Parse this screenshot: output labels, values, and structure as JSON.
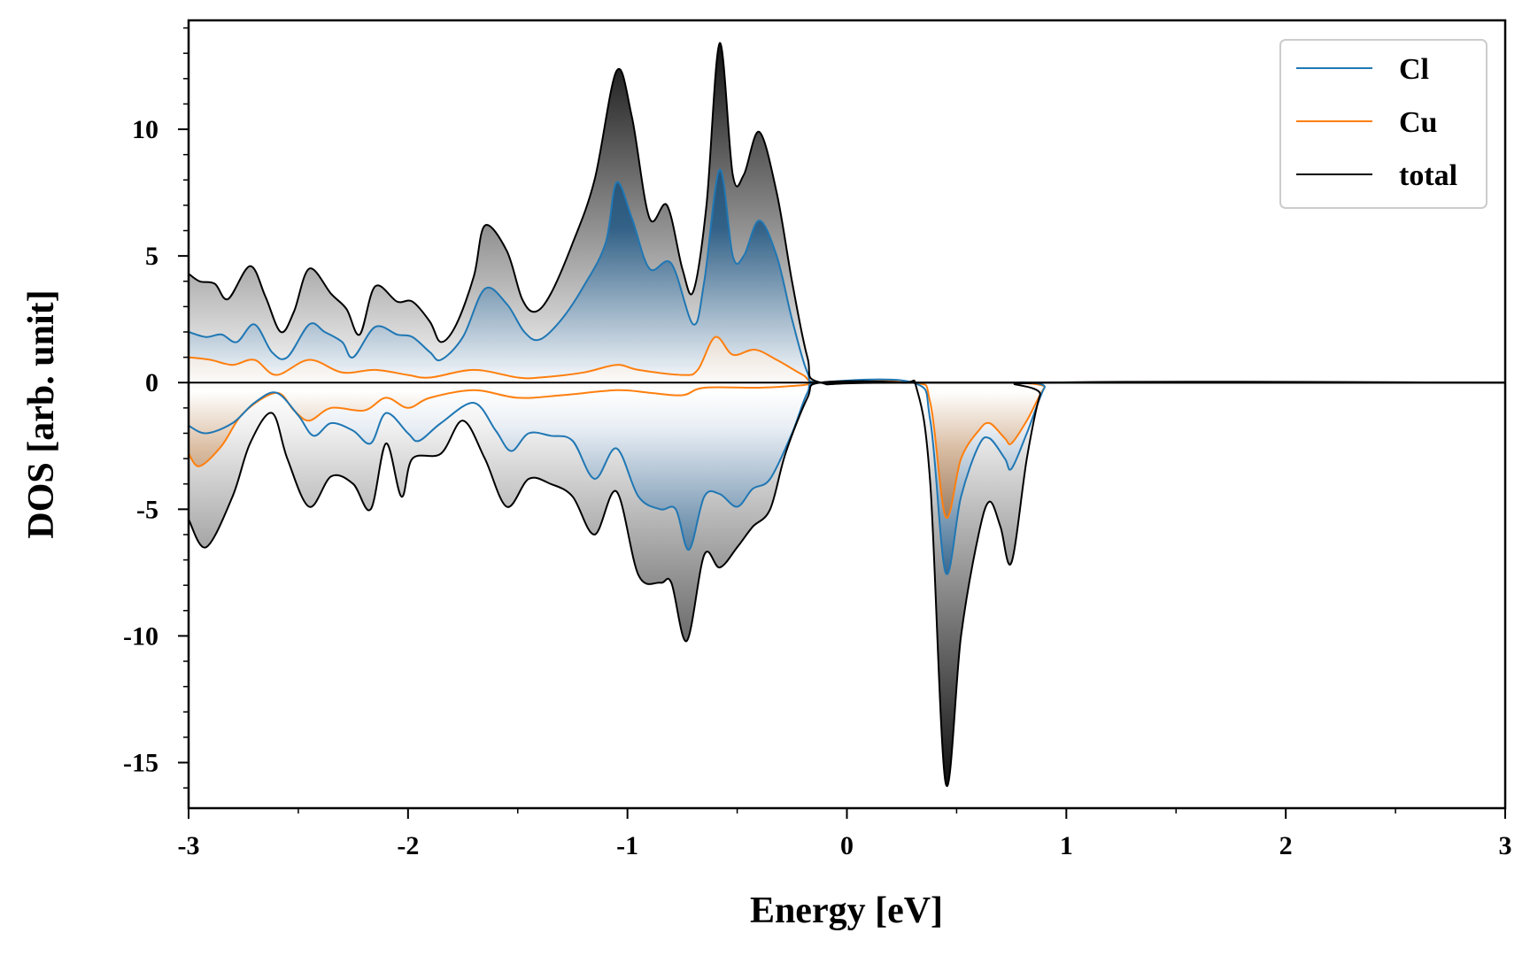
{
  "chart_data": {
    "type": "area",
    "title": "",
    "xlabel": "Energy [eV]",
    "ylabel": "DOS [arb. unit]",
    "xlim": [
      -3,
      3
    ],
    "ylim": [
      -16.8,
      14.3
    ],
    "xticks": [
      -3,
      -2,
      -1,
      0,
      1,
      2,
      3
    ],
    "xtick_labels": [
      "-3",
      "-2",
      "-1",
      "0",
      "1",
      "2",
      "3"
    ],
    "yticks": [
      -15,
      -10,
      -5,
      0,
      5,
      10
    ],
    "ytick_labels": [
      "-15",
      "-10",
      "-5",
      "0",
      "5",
      "10"
    ],
    "legend_position": "top-right",
    "grid": false,
    "colors": {
      "Cl": "#1f77b4",
      "Cu": "#ff7f0e",
      "total": "#000000"
    },
    "series": [
      {
        "name": "Cl",
        "spin_up": [
          [
            -3.0,
            2.0
          ],
          [
            -2.92,
            1.8
          ],
          [
            -2.85,
            1.9
          ],
          [
            -2.78,
            1.6
          ],
          [
            -2.7,
            2.3
          ],
          [
            -2.62,
            1.2
          ],
          [
            -2.55,
            1.0
          ],
          [
            -2.45,
            2.3
          ],
          [
            -2.38,
            2.0
          ],
          [
            -2.3,
            1.6
          ],
          [
            -2.25,
            1.0
          ],
          [
            -2.15,
            2.2
          ],
          [
            -2.05,
            1.9
          ],
          [
            -1.98,
            1.8
          ],
          [
            -1.9,
            1.2
          ],
          [
            -1.85,
            0.9
          ],
          [
            -1.75,
            1.8
          ],
          [
            -1.65,
            3.7
          ],
          [
            -1.55,
            3.1
          ],
          [
            -1.47,
            2.0
          ],
          [
            -1.4,
            1.7
          ],
          [
            -1.3,
            2.5
          ],
          [
            -1.2,
            3.8
          ],
          [
            -1.1,
            5.5
          ],
          [
            -1.05,
            7.9
          ],
          [
            -0.98,
            6.5
          ],
          [
            -0.9,
            4.5
          ],
          [
            -0.8,
            4.7
          ],
          [
            -0.7,
            2.3
          ],
          [
            -0.65,
            4.0
          ],
          [
            -0.58,
            8.4
          ],
          [
            -0.52,
            5.0
          ],
          [
            -0.47,
            5.0
          ],
          [
            -0.4,
            6.4
          ],
          [
            -0.32,
            5.0
          ],
          [
            -0.25,
            2.5
          ],
          [
            -0.18,
            0.4
          ],
          [
            -0.12,
            0.0
          ],
          [
            0.3,
            0.0
          ],
          [
            3.0,
            0.0
          ]
        ],
        "spin_down": [
          [
            -3.0,
            -1.7
          ],
          [
            -2.92,
            -2.0
          ],
          [
            -2.8,
            -1.6
          ],
          [
            -2.7,
            -0.8
          ],
          [
            -2.6,
            -0.4
          ],
          [
            -2.5,
            -1.3
          ],
          [
            -2.43,
            -2.1
          ],
          [
            -2.35,
            -1.6
          ],
          [
            -2.25,
            -1.9
          ],
          [
            -2.17,
            -2.4
          ],
          [
            -2.1,
            -1.2
          ],
          [
            -2.0,
            -2.0
          ],
          [
            -1.95,
            -2.3
          ],
          [
            -1.85,
            -1.6
          ],
          [
            -1.7,
            -0.8
          ],
          [
            -1.6,
            -1.9
          ],
          [
            -1.53,
            -2.7
          ],
          [
            -1.45,
            -2.0
          ],
          [
            -1.35,
            -2.1
          ],
          [
            -1.25,
            -2.3
          ],
          [
            -1.15,
            -3.8
          ],
          [
            -1.05,
            -2.6
          ],
          [
            -0.95,
            -4.5
          ],
          [
            -0.85,
            -5.0
          ],
          [
            -0.78,
            -5.0
          ],
          [
            -0.72,
            -6.6
          ],
          [
            -0.65,
            -4.5
          ],
          [
            -0.58,
            -4.4
          ],
          [
            -0.5,
            -4.9
          ],
          [
            -0.43,
            -4.2
          ],
          [
            -0.35,
            -3.8
          ],
          [
            -0.25,
            -2.0
          ],
          [
            -0.18,
            -0.4
          ],
          [
            -0.12,
            0.0
          ],
          [
            0.3,
            0.0
          ],
          [
            0.38,
            -1.5
          ],
          [
            0.45,
            -7.5
          ],
          [
            0.52,
            -4.5
          ],
          [
            0.6,
            -2.5
          ],
          [
            0.65,
            -2.2
          ],
          [
            0.72,
            -3.0
          ],
          [
            0.75,
            -3.4
          ],
          [
            0.82,
            -2.0
          ],
          [
            0.9,
            -0.2
          ],
          [
            0.95,
            0.0
          ],
          [
            3.0,
            0.0
          ]
        ]
      },
      {
        "name": "Cu",
        "spin_up": [
          [
            -3.0,
            1.0
          ],
          [
            -2.9,
            0.9
          ],
          [
            -2.8,
            0.7
          ],
          [
            -2.7,
            0.9
          ],
          [
            -2.6,
            0.3
          ],
          [
            -2.45,
            0.9
          ],
          [
            -2.3,
            0.4
          ],
          [
            -2.15,
            0.5
          ],
          [
            -2.0,
            0.3
          ],
          [
            -1.9,
            0.2
          ],
          [
            -1.7,
            0.5
          ],
          [
            -1.5,
            0.2
          ],
          [
            -1.4,
            0.2
          ],
          [
            -1.2,
            0.4
          ],
          [
            -1.05,
            0.7
          ],
          [
            -0.95,
            0.5
          ],
          [
            -0.75,
            0.3
          ],
          [
            -0.68,
            0.5
          ],
          [
            -0.6,
            1.8
          ],
          [
            -0.52,
            1.1
          ],
          [
            -0.42,
            1.3
          ],
          [
            -0.32,
            0.9
          ],
          [
            -0.2,
            0.3
          ],
          [
            -0.12,
            0.0
          ],
          [
            0.3,
            0.0
          ],
          [
            3.0,
            0.0
          ]
        ],
        "spin_down": [
          [
            -3.0,
            -2.8
          ],
          [
            -2.95,
            -3.3
          ],
          [
            -2.85,
            -2.5
          ],
          [
            -2.75,
            -1.2
          ],
          [
            -2.6,
            -0.4
          ],
          [
            -2.52,
            -1.1
          ],
          [
            -2.45,
            -1.5
          ],
          [
            -2.35,
            -1.0
          ],
          [
            -2.2,
            -1.1
          ],
          [
            -2.1,
            -0.6
          ],
          [
            -2.0,
            -1.0
          ],
          [
            -1.9,
            -0.6
          ],
          [
            -1.7,
            -0.3
          ],
          [
            -1.5,
            -0.6
          ],
          [
            -1.3,
            -0.5
          ],
          [
            -1.05,
            -0.3
          ],
          [
            -0.9,
            -0.4
          ],
          [
            -0.75,
            -0.5
          ],
          [
            -0.65,
            -0.2
          ],
          [
            -0.4,
            -0.2
          ],
          [
            -0.2,
            -0.1
          ],
          [
            -0.12,
            0.0
          ],
          [
            0.3,
            0.0
          ],
          [
            0.38,
            -0.8
          ],
          [
            0.45,
            -5.3
          ],
          [
            0.52,
            -3.0
          ],
          [
            0.6,
            -1.9
          ],
          [
            0.65,
            -1.6
          ],
          [
            0.72,
            -2.2
          ],
          [
            0.75,
            -2.4
          ],
          [
            0.82,
            -1.5
          ],
          [
            0.9,
            -0.2
          ],
          [
            0.95,
            0.0
          ],
          [
            3.0,
            0.0
          ]
        ]
      },
      {
        "name": "total",
        "spin_up": [
          [
            -3.0,
            4.3
          ],
          [
            -2.95,
            4.0
          ],
          [
            -2.88,
            3.9
          ],
          [
            -2.82,
            3.3
          ],
          [
            -2.72,
            4.6
          ],
          [
            -2.65,
            3.4
          ],
          [
            -2.58,
            2.0
          ],
          [
            -2.52,
            2.8
          ],
          [
            -2.45,
            4.5
          ],
          [
            -2.35,
            3.5
          ],
          [
            -2.28,
            2.9
          ],
          [
            -2.22,
            1.9
          ],
          [
            -2.15,
            3.8
          ],
          [
            -2.05,
            3.2
          ],
          [
            -1.98,
            3.2
          ],
          [
            -1.9,
            2.4
          ],
          [
            -1.85,
            1.6
          ],
          [
            -1.78,
            2.3
          ],
          [
            -1.7,
            4.2
          ],
          [
            -1.65,
            6.2
          ],
          [
            -1.55,
            5.2
          ],
          [
            -1.48,
            3.3
          ],
          [
            -1.42,
            2.8
          ],
          [
            -1.35,
            3.5
          ],
          [
            -1.25,
            5.5
          ],
          [
            -1.15,
            8.0
          ],
          [
            -1.05,
            12.3
          ],
          [
            -0.98,
            10.5
          ],
          [
            -0.9,
            6.5
          ],
          [
            -0.82,
            7.0
          ],
          [
            -0.75,
            4.5
          ],
          [
            -0.7,
            3.6
          ],
          [
            -0.64,
            7.0
          ],
          [
            -0.58,
            13.4
          ],
          [
            -0.52,
            8.2
          ],
          [
            -0.47,
            8.2
          ],
          [
            -0.4,
            9.9
          ],
          [
            -0.32,
            7.5
          ],
          [
            -0.25,
            4.0
          ],
          [
            -0.18,
            1.0
          ],
          [
            -0.12,
            0.0
          ],
          [
            0.3,
            0.0
          ],
          [
            3.0,
            0.0
          ]
        ],
        "spin_down": [
          [
            -3.0,
            -5.4
          ],
          [
            -2.92,
            -6.5
          ],
          [
            -2.8,
            -4.5
          ],
          [
            -2.72,
            -2.4
          ],
          [
            -2.62,
            -1.2
          ],
          [
            -2.55,
            -3.0
          ],
          [
            -2.45,
            -4.9
          ],
          [
            -2.35,
            -3.7
          ],
          [
            -2.25,
            -4.0
          ],
          [
            -2.17,
            -5.0
          ],
          [
            -2.1,
            -2.4
          ],
          [
            -2.03,
            -4.5
          ],
          [
            -1.98,
            -3.0
          ],
          [
            -1.85,
            -2.8
          ],
          [
            -1.75,
            -1.5
          ],
          [
            -1.65,
            -3.0
          ],
          [
            -1.55,
            -4.9
          ],
          [
            -1.45,
            -3.8
          ],
          [
            -1.35,
            -4.0
          ],
          [
            -1.25,
            -4.5
          ],
          [
            -1.15,
            -6.0
          ],
          [
            -1.05,
            -4.3
          ],
          [
            -0.95,
            -7.6
          ],
          [
            -0.85,
            -7.9
          ],
          [
            -0.8,
            -7.9
          ],
          [
            -0.73,
            -10.2
          ],
          [
            -0.65,
            -6.8
          ],
          [
            -0.58,
            -7.3
          ],
          [
            -0.5,
            -6.5
          ],
          [
            -0.43,
            -5.7
          ],
          [
            -0.35,
            -5.0
          ],
          [
            -0.28,
            -2.8
          ],
          [
            -0.18,
            -0.6
          ],
          [
            -0.12,
            0.0
          ],
          [
            0.25,
            0.0
          ],
          [
            0.32,
            -0.3
          ],
          [
            0.38,
            -4.0
          ],
          [
            0.45,
            -15.8
          ],
          [
            0.52,
            -10.0
          ],
          [
            0.6,
            -6.0
          ],
          [
            0.65,
            -4.7
          ],
          [
            0.7,
            -5.7
          ],
          [
            0.75,
            -7.1
          ],
          [
            0.82,
            -3.0
          ],
          [
            0.88,
            -0.5
          ],
          [
            0.93,
            0.0
          ],
          [
            3.0,
            0.0
          ]
        ]
      }
    ]
  },
  "legend": {
    "items": [
      {
        "label": "Cl",
        "color": "#1f77b4"
      },
      {
        "label": "Cu",
        "color": "#ff7f0e"
      },
      {
        "label": "total",
        "color": "#000000"
      }
    ]
  }
}
